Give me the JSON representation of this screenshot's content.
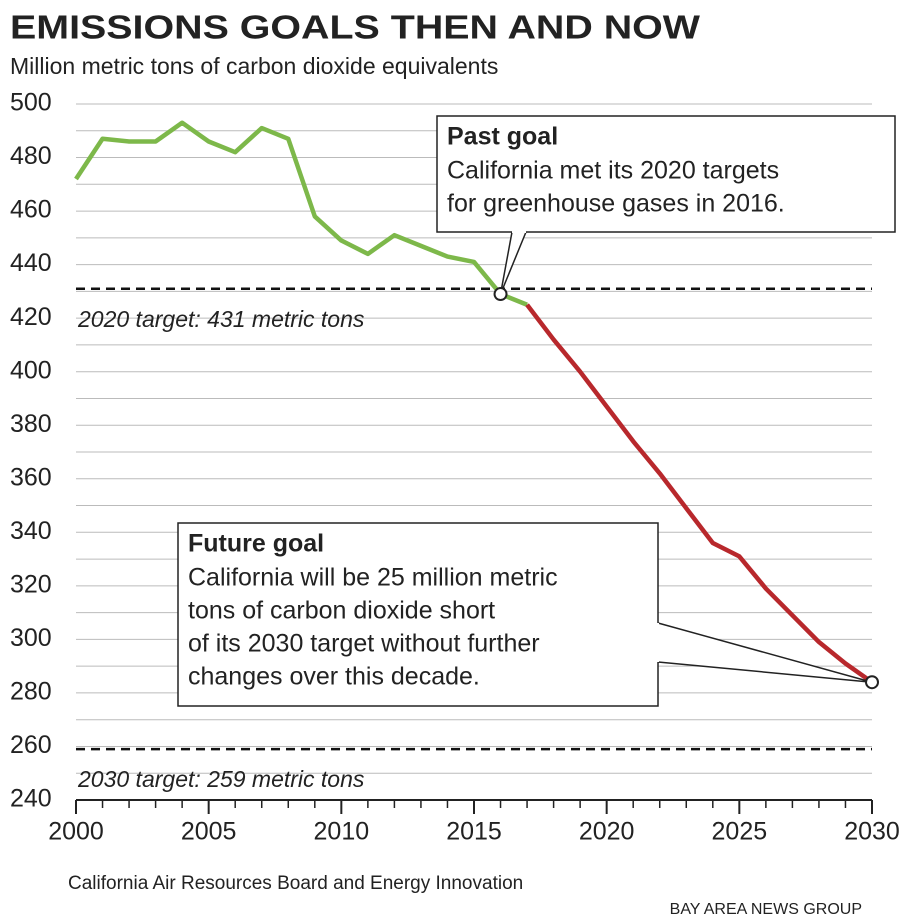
{
  "chart_data": {
    "type": "line",
    "title": "EMISSIONS GOALS THEN AND NOW",
    "subtitle": "Million metric tons of carbon dioxide equivalents",
    "series": [
      {
        "color": "#7db84a",
        "x": [
          2000,
          2001,
          2002,
          2003,
          2004,
          2005,
          2006,
          2007,
          2008,
          2009,
          2010,
          2011,
          2012,
          2013,
          2014,
          2015,
          2016,
          2017
        ],
        "values": [
          472,
          487,
          486,
          486,
          493,
          486,
          482,
          491,
          487,
          458,
          449,
          444,
          451,
          447,
          443,
          441,
          429,
          425
        ]
      },
      {
        "color": "#b8282c",
        "x": [
          2017,
          2018,
          2019,
          2020,
          2021,
          2022,
          2023,
          2024,
          2025,
          2026,
          2027,
          2028,
          2029,
          2030
        ],
        "values": [
          425,
          412,
          400,
          387,
          374,
          362,
          349,
          336,
          331,
          319,
          309,
          299,
          291,
          284
        ]
      }
    ],
    "xlim": [
      2000,
      2030
    ],
    "xticks": [
      2000,
      2005,
      2010,
      2015,
      2020,
      2025,
      2030
    ],
    "xminor": [
      2001,
      2002,
      2003,
      2004,
      2006,
      2007,
      2008,
      2009,
      2011,
      2012,
      2013,
      2014,
      2016,
      2017,
      2018,
      2019,
      2021,
      2022,
      2023,
      2024,
      2026,
      2027,
      2028,
      2029
    ],
    "ylim": [
      240,
      500
    ],
    "yticks": [
      240,
      260,
      280,
      300,
      320,
      340,
      360,
      380,
      400,
      420,
      440,
      460,
      480,
      500
    ],
    "ygrid": [
      250,
      270,
      290,
      310,
      330,
      350,
      370,
      390,
      410,
      430,
      450,
      470,
      490
    ],
    "targets": [
      {
        "value": 431,
        "label": "2020 target: 431 metric tons"
      },
      {
        "value": 259,
        "label": "2030 target: 259 metric tons"
      }
    ],
    "annotations": [
      {
        "title": "Past goal",
        "lines": [
          "California met its 2020 targets",
          "for greenhouse gases in 2016."
        ]
      },
      {
        "title": "Future goal",
        "lines": [
          "California will be 25 million metric",
          "tons of carbon dioxide short",
          "of its 2030 target without further",
          "changes over this decade."
        ]
      }
    ],
    "source": "California Air Resources Board and Energy Innovation",
    "credit": "BAY AREA NEWS GROUP"
  }
}
